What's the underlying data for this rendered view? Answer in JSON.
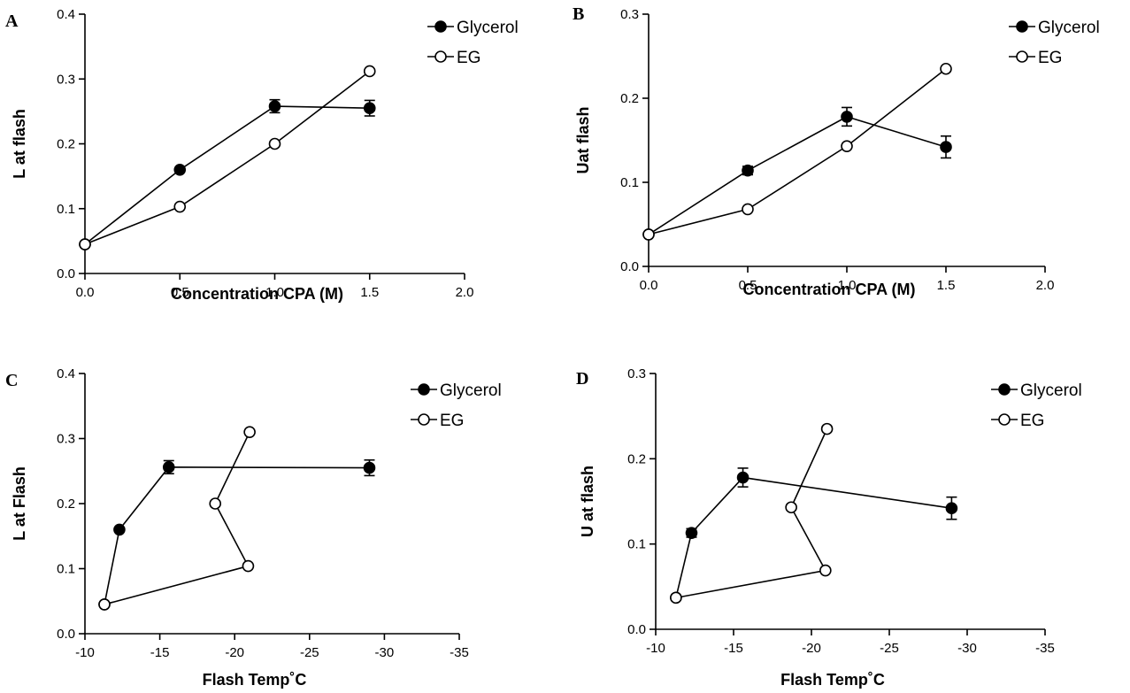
{
  "chart_data": [
    {
      "panel": "A",
      "type": "line",
      "xlabel": "Concentration CPA (M)",
      "ylabel": "L at flash",
      "xlim": [
        0.0,
        2.0
      ],
      "ylim": [
        0.0,
        0.4
      ],
      "xticks": [
        "0.0",
        "0.5",
        "1.0",
        "1.5",
        "2.0"
      ],
      "yticks": [
        "0.0",
        "0.1",
        "0.2",
        "0.3",
        "0.4"
      ],
      "legend_position": "top-right",
      "series": [
        {
          "name": "Glycerol",
          "marker": "filled-circle",
          "x": [
            0.0,
            0.5,
            1.0,
            1.5
          ],
          "y": [
            0.045,
            0.16,
            0.258,
            0.255
          ],
          "err": [
            0,
            0,
            0.01,
            0.012
          ]
        },
        {
          "name": "EG",
          "marker": "open-circle",
          "x": [
            0.0,
            0.5,
            1.0,
            1.5
          ],
          "y": [
            0.045,
            0.103,
            0.2,
            0.312
          ],
          "err": [
            0,
            0,
            0,
            0
          ]
        }
      ]
    },
    {
      "panel": "B",
      "type": "line",
      "xlabel": "Concentration CPA (M)",
      "ylabel": "Uat flash",
      "xlim": [
        0.0,
        2.0
      ],
      "ylim": [
        0.0,
        0.3
      ],
      "xticks": [
        "0.0",
        "0.5",
        "1.0",
        "1.5",
        "2.0"
      ],
      "yticks": [
        "0.0",
        "0.1",
        "0.2",
        "0.3"
      ],
      "legend_position": "top-right",
      "series": [
        {
          "name": "Glycerol",
          "marker": "filled-circle",
          "x": [
            0.0,
            0.5,
            1.0,
            1.5
          ],
          "y": [
            0.038,
            0.114,
            0.178,
            0.142
          ],
          "err": [
            0,
            0.005,
            0.011,
            0.013
          ]
        },
        {
          "name": "EG",
          "marker": "open-circle",
          "x": [
            0.0,
            0.5,
            1.0,
            1.5
          ],
          "y": [
            0.038,
            0.068,
            0.143,
            0.235
          ],
          "err": [
            0,
            0,
            0,
            0
          ]
        }
      ]
    },
    {
      "panel": "C",
      "type": "line",
      "xlabel": "Flash Temp˚C",
      "ylabel": "L at Flash",
      "xlim": [
        -10,
        -35
      ],
      "ylim": [
        0.0,
        0.4
      ],
      "xticks": [
        "-10",
        "-15",
        "-20",
        "-25",
        "-30",
        "-35"
      ],
      "yticks": [
        "0.0",
        "0.1",
        "0.2",
        "0.3",
        "0.4"
      ],
      "legend_position": "top-right",
      "series": [
        {
          "name": "Glycerol",
          "marker": "filled-circle",
          "x": [
            -11.3,
            -12.3,
            -15.6,
            -29.0
          ],
          "y": [
            0.045,
            0.16,
            0.256,
            0.255
          ],
          "err": [
            0,
            0,
            0.01,
            0.012
          ]
        },
        {
          "name": "EG",
          "marker": "open-circle",
          "x": [
            -11.3,
            -20.9,
            -18.7,
            -21.0
          ],
          "y": [
            0.045,
            0.104,
            0.2,
            0.31
          ],
          "err": [
            0,
            0,
            0,
            0
          ]
        }
      ]
    },
    {
      "panel": "D",
      "type": "line",
      "xlabel": "Flash Temp˚C",
      "ylabel": "U at flash",
      "xlim": [
        -10,
        -35
      ],
      "ylim": [
        0.0,
        0.3
      ],
      "xticks": [
        "-10",
        "-15",
        "-20",
        "-25",
        "-30",
        "-35"
      ],
      "yticks": [
        "0.0",
        "0.1",
        "0.2",
        "0.3"
      ],
      "legend_position": "top-right",
      "series": [
        {
          "name": "Glycerol",
          "marker": "filled-circle",
          "x": [
            -11.3,
            -12.3,
            -15.6,
            -29.0
          ],
          "y": [
            0.037,
            0.113,
            0.178,
            0.142
          ],
          "err": [
            0,
            0.005,
            0.011,
            0.013
          ]
        },
        {
          "name": "EG",
          "marker": "open-circle",
          "x": [
            -11.3,
            -20.9,
            -18.7,
            -21.0
          ],
          "y": [
            0.037,
            0.069,
            0.143,
            0.235
          ],
          "err": [
            0,
            0,
            0,
            0
          ]
        }
      ]
    }
  ]
}
